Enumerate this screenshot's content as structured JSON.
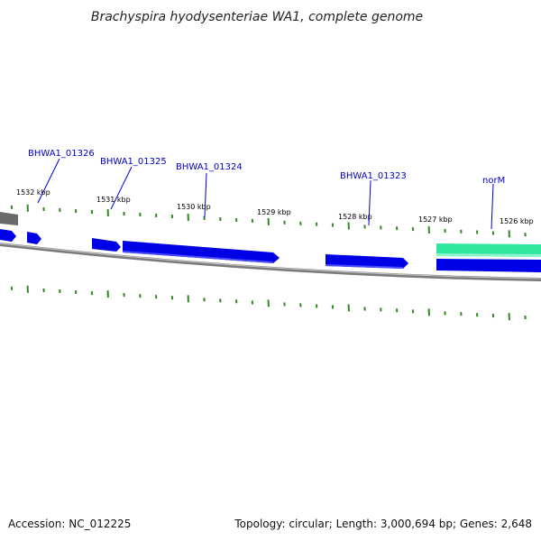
{
  "title": "Brachyspira hyodysenteriae WA1, complete genome",
  "footer": {
    "accession": "Accession: NC_012225",
    "summary": "Topology: circular; Length: 3,000,694 bp; Genes: 2,648"
  },
  "colors": {
    "backbone": "#8a8a8a",
    "tick": "#2e8b1e",
    "gene_forward": "#0000e0",
    "gene_highlight": "#2ee8a0",
    "label": "#0000cc"
  },
  "ticks": [
    {
      "label": "1532 kbp"
    },
    {
      "label": "1531 kbp"
    },
    {
      "label": "1530 kbp"
    },
    {
      "label": "1529 kbp"
    },
    {
      "label": "1528 kbp"
    },
    {
      "label": "1527 kbp"
    },
    {
      "label": "1526 kbp"
    }
  ],
  "gene_labels": [
    {
      "name": "BHWA1_01326"
    },
    {
      "name": "BHWA1_01325"
    },
    {
      "name": "BHWA1_01324"
    },
    {
      "name": "BHWA1_01323"
    },
    {
      "name": "norM"
    }
  ]
}
